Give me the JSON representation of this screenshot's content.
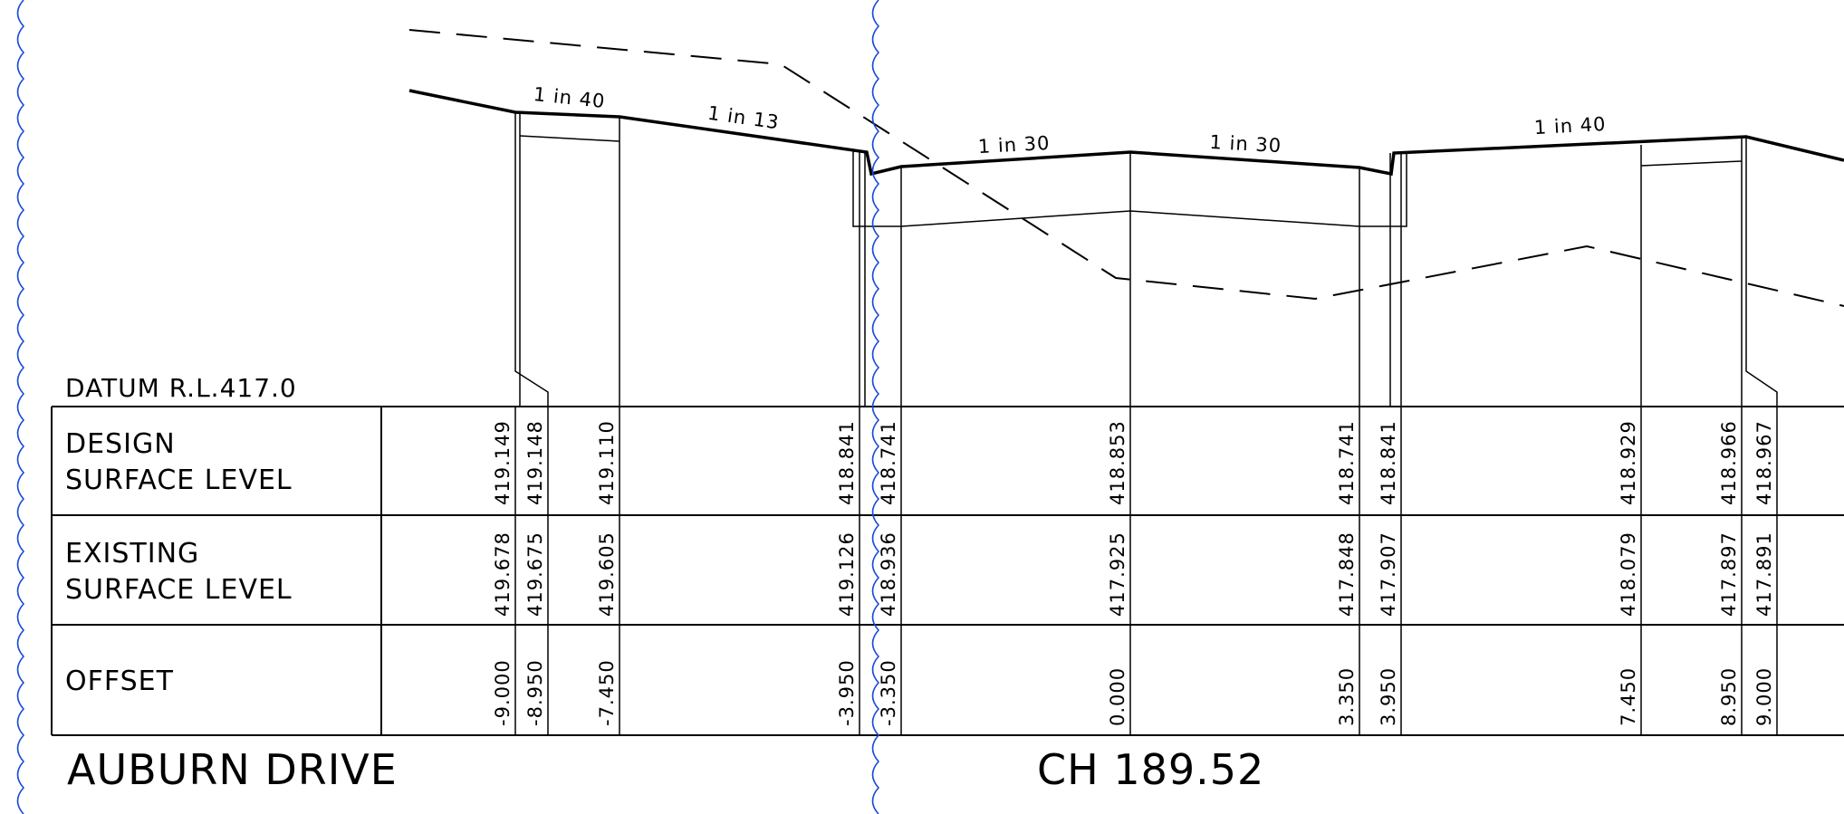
{
  "datum_label": "DATUM R.L.417.0",
  "road_name": "AUBURN DRIVE",
  "chainage": "CH 189.52",
  "rows": {
    "design": {
      "line1": "DESIGN",
      "line2": "SURFACE LEVEL"
    },
    "existing": {
      "line1": "EXISTING",
      "line2": "SURFACE LEVEL"
    },
    "offset": {
      "line1": "OFFSET"
    }
  },
  "grade_labels": [
    "1 in 40",
    "1 in 13",
    "1 in 30",
    "1 in 30",
    "1 in 40"
  ],
  "stations": [
    {
      "design": "419.149",
      "existing": "419.678",
      "offset": "-9.000"
    },
    {
      "design": "419.148",
      "existing": "419.675",
      "offset": "-8.950"
    },
    {
      "design": "419.110",
      "existing": "419.605",
      "offset": "-7.450"
    },
    {
      "design": "418.841",
      "existing": "419.126",
      "offset": "-3.950"
    },
    {
      "design": "418.741",
      "existing": "418.936",
      "offset": "-3.350"
    },
    {
      "design": "418.853",
      "existing": "417.925",
      "offset": "0.000"
    },
    {
      "design": "418.741",
      "existing": "417.848",
      "offset": "3.350"
    },
    {
      "design": "418.841",
      "existing": "417.907",
      "offset": "3.950"
    },
    {
      "design": "418.929",
      "existing": "418.079",
      "offset": "7.450"
    },
    {
      "design": "418.966",
      "existing": "417.897",
      "offset": "8.950"
    },
    {
      "design": "418.967",
      "existing": "417.891",
      "offset": "9.000"
    }
  ],
  "colors": {
    "linework": "#000000",
    "revision_cloud": "#1a4bd8"
  }
}
